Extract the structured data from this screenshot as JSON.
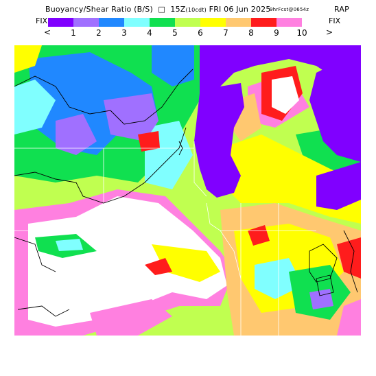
{
  "title": {
    "main": "Buoyancy/Shear Ratio (B/S)",
    "run": "15Z",
    "run_note": "(10cdt)",
    "date": "FRI 06 Jun 2025",
    "sub": "9hrFcst@0654z",
    "model": "RAP"
  },
  "legend": {
    "fix_left": "FIX",
    "fix_right": "FIX",
    "colors": [
      "#8000ff",
      "#a070ff",
      "#2088ff",
      "#80ffff",
      "#10e050",
      "#c0ff50",
      "#ffff00",
      "#ffc870",
      "#ff1c1c",
      "#ff80e0"
    ],
    "labels": [
      "1",
      "2",
      "3",
      "4",
      "5",
      "6",
      "7",
      "8",
      "9",
      "10"
    ],
    "prev": "<",
    "next": ">"
  },
  "map": {
    "background": "#ffffff",
    "lake_color": "#8000ff"
  }
}
